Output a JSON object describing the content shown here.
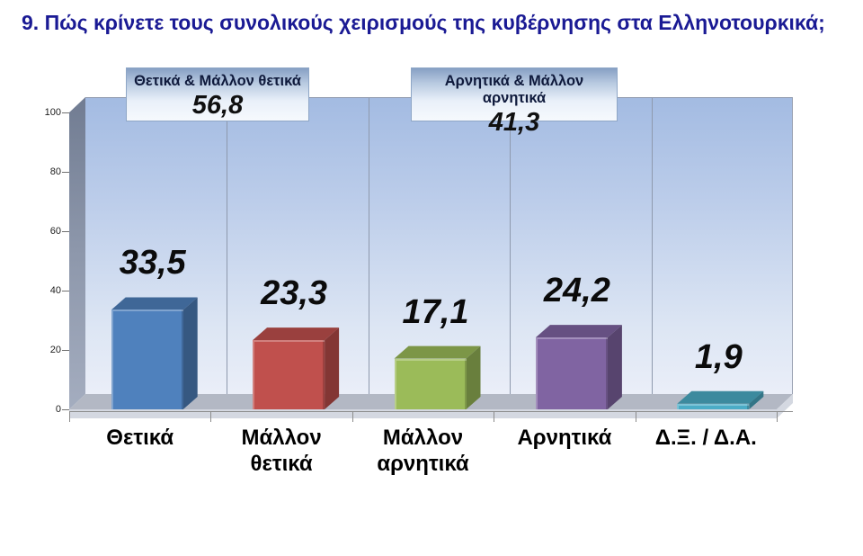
{
  "title": "9. Πώς κρίνετε τους συνολικούς χειρισμούς της κυβέρνησης στα Ελληνοτουρκικά;",
  "summary": {
    "positive": {
      "label": "Θετικά & Μάλλον θετικά",
      "value": "56,8"
    },
    "negative": {
      "label": "Αρνητικά & Μάλλον αρνητικά",
      "value": "41,3"
    }
  },
  "chart_data": {
    "type": "bar",
    "style": "3d-column",
    "title": "",
    "xlabel": "",
    "ylabel": "",
    "categories": [
      "Θετικά",
      "Μάλλον θετικά",
      "Μάλλον αρνητικά",
      "Αρνητικά",
      "Δ.Ξ. / Δ.Α."
    ],
    "values": [
      33.5,
      23.3,
      17.1,
      24.2,
      1.9
    ],
    "value_labels": [
      "33,5",
      "23,3",
      "17,1",
      "24,2",
      "1,9"
    ],
    "bar_colors": [
      "#4F81BD",
      "#C0504D",
      "#9BBB59",
      "#8064A2",
      "#4BACC6"
    ],
    "y_ticks": [
      0,
      20,
      40,
      60,
      80,
      100
    ],
    "ylim": [
      0,
      100
    ],
    "grid": "vertical-category-separators",
    "legend": "none",
    "wall_color_top": "#a3bbe2",
    "wall_color_bottom": "#eaeef8",
    "title_color": "#1a1a94"
  }
}
